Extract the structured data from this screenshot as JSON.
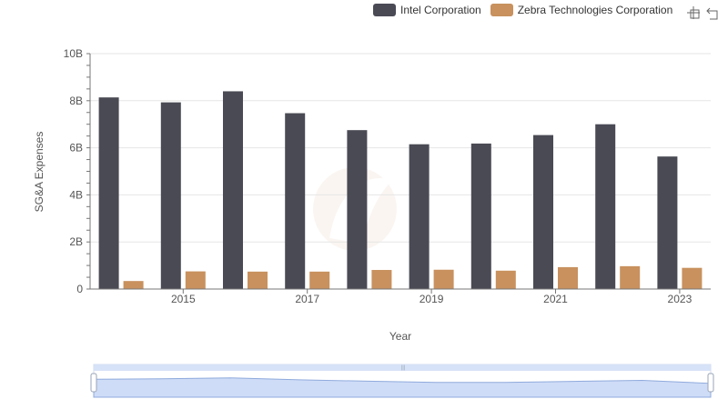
{
  "chart_data": {
    "type": "bar",
    "xlabel": "Year",
    "ylabel": "SG&A Expenses",
    "years": [
      2014,
      2015,
      2016,
      2017,
      2018,
      2019,
      2020,
      2021,
      2022,
      2023
    ],
    "x_tick_labels": [
      "2015",
      "2017",
      "2019",
      "2021",
      "2023"
    ],
    "y_tick_labels": [
      "0",
      "2B",
      "4B",
      "6B",
      "8B",
      "10B"
    ],
    "ylim": [
      0,
      10000000000
    ],
    "series": [
      {
        "name": "Intel Corporation",
        "color": "#4a4a55",
        "values": [
          8140000000,
          7930000000,
          8400000000,
          7470000000,
          6750000000,
          6150000000,
          6180000000,
          6540000000,
          7000000000,
          5630000000
        ]
      },
      {
        "name": "Zebra Technologies Corporation",
        "color": "#c8915e",
        "values": [
          340000000,
          750000000,
          740000000,
          740000000,
          810000000,
          820000000,
          780000000,
          930000000,
          970000000,
          900000000
        ]
      }
    ],
    "grid": true,
    "legend_position": "top-right"
  },
  "toolbox": {
    "icons": [
      "zoom-icon",
      "restore-icon"
    ]
  }
}
